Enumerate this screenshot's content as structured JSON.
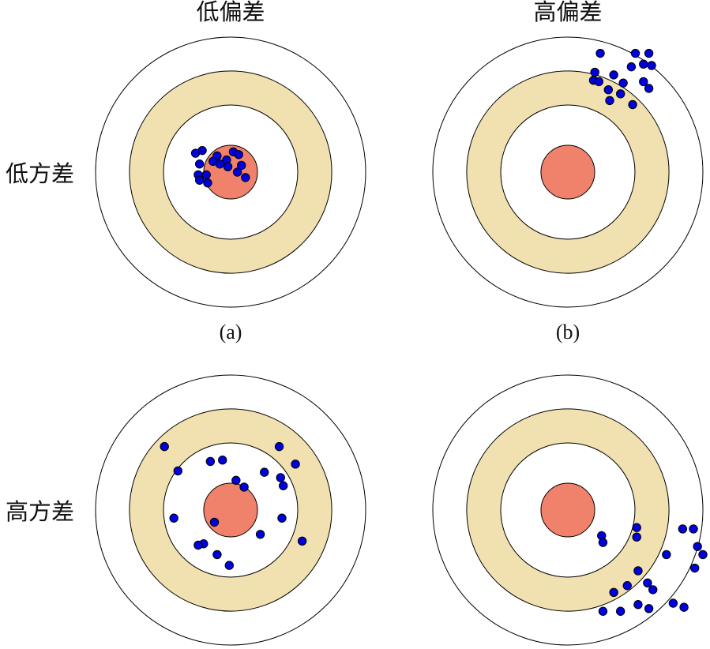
{
  "headers": {
    "low_bias": "低偏差",
    "high_bias": "高偏差",
    "low_variance": "低方差",
    "high_variance": "高方差"
  },
  "captions": {
    "a": "(a)",
    "b": "(b)"
  },
  "colors": {
    "bullseye": "#f0826c",
    "ring": "#f1e0b0",
    "background": "#ffffff",
    "outline": "#000000",
    "shot": "#0000dd"
  },
  "targets": [
    {
      "id": "low-bias-low-variance",
      "shots": [
        [
          -0.26,
          -0.14
        ],
        [
          -0.21,
          -0.16
        ],
        [
          -0.1,
          -0.12
        ],
        [
          -0.13,
          -0.08
        ],
        [
          -0.03,
          -0.09
        ],
        [
          0.02,
          -0.15
        ],
        [
          0.06,
          -0.13
        ],
        [
          -0.23,
          -0.06
        ],
        [
          -0.08,
          -0.06
        ],
        [
          -0.02,
          -0.04
        ],
        [
          0.08,
          -0.05
        ],
        [
          -0.24,
          0.02
        ],
        [
          -0.18,
          0.02
        ],
        [
          0.05,
          0.0
        ],
        [
          0.11,
          0.04
        ],
        [
          -0.23,
          0.06
        ],
        [
          -0.17,
          0.08
        ]
      ]
    },
    {
      "id": "high-bias-low-variance",
      "shots": [
        [
          0.24,
          -0.88
        ],
        [
          0.5,
          -0.88
        ],
        [
          0.6,
          -0.88
        ],
        [
          0.47,
          -0.78
        ],
        [
          0.56,
          -0.8
        ],
        [
          0.62,
          -0.79
        ],
        [
          0.2,
          -0.74
        ],
        [
          0.34,
          -0.72
        ],
        [
          0.19,
          -0.68
        ],
        [
          0.23,
          -0.67
        ],
        [
          0.41,
          -0.66
        ],
        [
          0.56,
          -0.67
        ],
        [
          0.6,
          -0.62
        ],
        [
          0.3,
          -0.61
        ],
        [
          0.39,
          -0.58
        ],
        [
          0.31,
          -0.53
        ],
        [
          0.48,
          -0.5
        ]
      ]
    },
    {
      "id": "high-bias-high-variance",
      "shots": [
        [
          -0.49,
          -0.47
        ],
        [
          0.36,
          -0.47
        ],
        [
          -0.15,
          -0.36
        ],
        [
          -0.06,
          -0.37
        ],
        [
          0.48,
          -0.34
        ],
        [
          -0.39,
          -0.29
        ],
        [
          0.25,
          -0.28
        ],
        [
          0.37,
          -0.24
        ],
        [
          0.04,
          -0.22
        ],
        [
          0.39,
          -0.18
        ],
        [
          0.1,
          -0.17
        ],
        [
          -0.42,
          0.06
        ],
        [
          0.38,
          0.06
        ],
        [
          -0.12,
          0.09
        ],
        [
          0.22,
          0.18
        ],
        [
          0.53,
          0.23
        ],
        [
          -0.2,
          0.25
        ],
        [
          -0.24,
          0.26
        ],
        [
          -0.1,
          0.33
        ],
        [
          -0.01,
          0.41
        ]
      ]
    },
    {
      "id": "high-bias-high-variance-2",
      "shots": [
        [
          0.51,
          0.13
        ],
        [
          0.85,
          0.14
        ],
        [
          0.93,
          0.14
        ],
        [
          0.25,
          0.19
        ],
        [
          0.51,
          0.2
        ],
        [
          0.96,
          0.27
        ],
        [
          0.26,
          0.24
        ],
        [
          1.0,
          0.33
        ],
        [
          0.73,
          0.33
        ],
        [
          0.94,
          0.43
        ],
        [
          0.52,
          0.45
        ],
        [
          0.59,
          0.54
        ],
        [
          0.63,
          0.59
        ],
        [
          0.44,
          0.56
        ],
        [
          0.34,
          0.61
        ],
        [
          0.78,
          0.69
        ],
        [
          0.52,
          0.7
        ],
        [
          0.86,
          0.72
        ],
        [
          0.6,
          0.73
        ],
        [
          0.26,
          0.75
        ],
        [
          0.39,
          0.75
        ]
      ]
    }
  ]
}
